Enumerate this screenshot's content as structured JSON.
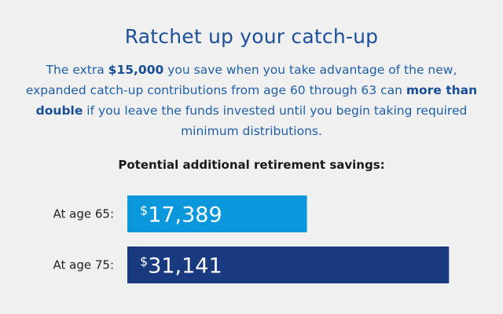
{
  "title": "Ratchet up your catch-up",
  "intro": {
    "p1": "The extra ",
    "amount": "$15,000",
    "p2": " you save when you take advantage of the new, expanded catch-up contributions from age 60 through 63 can ",
    "emphasis": "more than double",
    "p3": " if you leave the funds invested until you begin taking required minimum distributions."
  },
  "colors": {
    "title": "#1b4f9b",
    "bar_age_65": "#0a97db",
    "bar_age_75": "#1a3a80",
    "background": "#f0f0f0"
  },
  "chart_data": {
    "type": "bar",
    "orientation": "horizontal",
    "title": "Potential additional retirement savings:",
    "categories": [
      "At age 65:",
      "At age 75:"
    ],
    "values": [
      17389,
      31141
    ],
    "value_labels": [
      {
        "currency": "$",
        "amount": "17,389"
      },
      {
        "currency": "$",
        "amount": "31,141"
      }
    ],
    "xlim": [
      0,
      35000
    ],
    "grid": false,
    "legend": "none"
  }
}
